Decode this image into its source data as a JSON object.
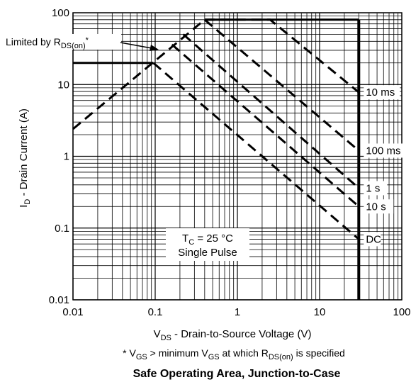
{
  "chart_data": {
    "type": "line",
    "title": "Safe Operating Area, Junction-to-Case",
    "xlabel": "V",
    "xlabel_sub": "DS",
    "xlabel_rest": " - Drain-to-Source Voltage (V)",
    "ylabel": "I",
    "ylabel_sub": "D",
    "ylabel_rest": " - Drain Current (A)",
    "x_scale": "log",
    "y_scale": "log",
    "xlim": [
      0.01,
      100
    ],
    "ylim": [
      0.01,
      100
    ],
    "grid": true,
    "x_ticks": [
      {
        "value": 0.01,
        "label": "0.01"
      },
      {
        "value": 0.1,
        "label": "0.1"
      },
      {
        "value": 1,
        "label": "1"
      },
      {
        "value": 10,
        "label": "10"
      },
      {
        "value": 100,
        "label": "100"
      }
    ],
    "y_ticks": [
      {
        "value": 0.01,
        "label": "0.01"
      },
      {
        "value": 0.1,
        "label": "0.1"
      },
      {
        "value": 1,
        "label": "1"
      },
      {
        "value": 10,
        "label": "10"
      },
      {
        "value": 100,
        "label": "100"
      }
    ],
    "rds_limit": {
      "x": [
        0.01,
        0.4
      ],
      "y": [
        2.4,
        80
      ]
    },
    "max_current": {
      "x": [
        0.4,
        30
      ],
      "y": [
        80,
        80
      ],
      "value": 80
    },
    "max_voltage": {
      "x": [
        30,
        30
      ],
      "y": [
        0.01,
        80
      ],
      "value": 30
    },
    "dc_current_limit": {
      "x": [
        0.01,
        0.095
      ],
      "y": [
        20,
        20
      ],
      "value": 20
    },
    "series": [
      {
        "name": "10 ms",
        "x": [
          0.4,
          2.5,
          30
        ],
        "y": [
          80,
          80,
          7.8
        ]
      },
      {
        "name": "100 ms",
        "x": [
          0.4,
          30
        ],
        "y": [
          80,
          1.2
        ]
      },
      {
        "name": "1 s",
        "x": [
          0.22,
          30
        ],
        "y": [
          50,
          0.36
        ]
      },
      {
        "name": "10 s",
        "x": [
          0.16,
          30
        ],
        "y": [
          36,
          0.2
        ]
      },
      {
        "name": "DC",
        "x": [
          0.095,
          30
        ],
        "y": [
          20,
          0.07
        ]
      }
    ],
    "annotations": {
      "limited_by": "Limited by R",
      "limited_by_sub": "DS(on)",
      "limited_by_sup": "*",
      "tc_text": "T",
      "tc_sub": "C",
      "tc_rest": " = 25 °C",
      "pulse_text": "Single Pulse"
    },
    "footnote": {
      "p1": "* V",
      "s1": "GS",
      "p2": " > minimum V",
      "s2": "GS",
      "p3": " at which R",
      "s3": "DS(on)",
      "p4": " is specified"
    }
  }
}
